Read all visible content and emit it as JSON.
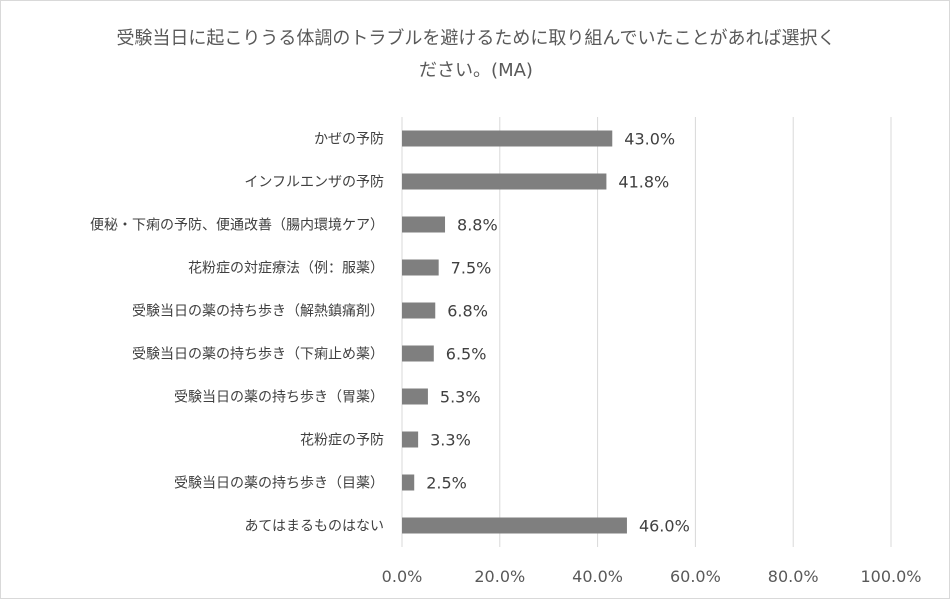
{
  "chart_data": {
    "type": "bar",
    "orientation": "horizontal",
    "title_line1": "受験当日に起こりうる体調のトラブルを避けるために取り組んでいたことがあれば選択く",
    "title_line2": "ださい。(MA)",
    "categories": [
      "かぜの予防",
      "インフルエンザの予防",
      "便秘・下痢の予防、便通改善（腸内環境ケア）",
      "花粉症の対症療法（例：服薬）",
      "受験当日の薬の持ち歩き（解熱鎮痛剤）",
      "受験当日の薬の持ち歩き（下痢止め薬）",
      "受験当日の薬の持ち歩き（胃薬）",
      "花粉症の予防",
      "受験当日の薬の持ち歩き（目薬）",
      "あてはまるものはない"
    ],
    "values": [
      43.0,
      41.8,
      8.8,
      7.5,
      6.8,
      6.5,
      5.3,
      3.3,
      2.5,
      46.0
    ],
    "value_labels": [
      "43.0%",
      "41.8%",
      "8.8%",
      "7.5%",
      "6.8%",
      "6.5%",
      "5.3%",
      "3.3%",
      "2.5%",
      "46.0%"
    ],
    "xlim": [
      0,
      100
    ],
    "xticks": [
      0,
      20,
      40,
      60,
      80,
      100
    ],
    "xtick_labels": [
      "0.0%",
      "20.0%",
      "40.0%",
      "60.0%",
      "80.0%",
      "100.0%"
    ],
    "grid": true,
    "bar_color": "#7f7f7f",
    "grid_color": "#d9d9d9"
  }
}
